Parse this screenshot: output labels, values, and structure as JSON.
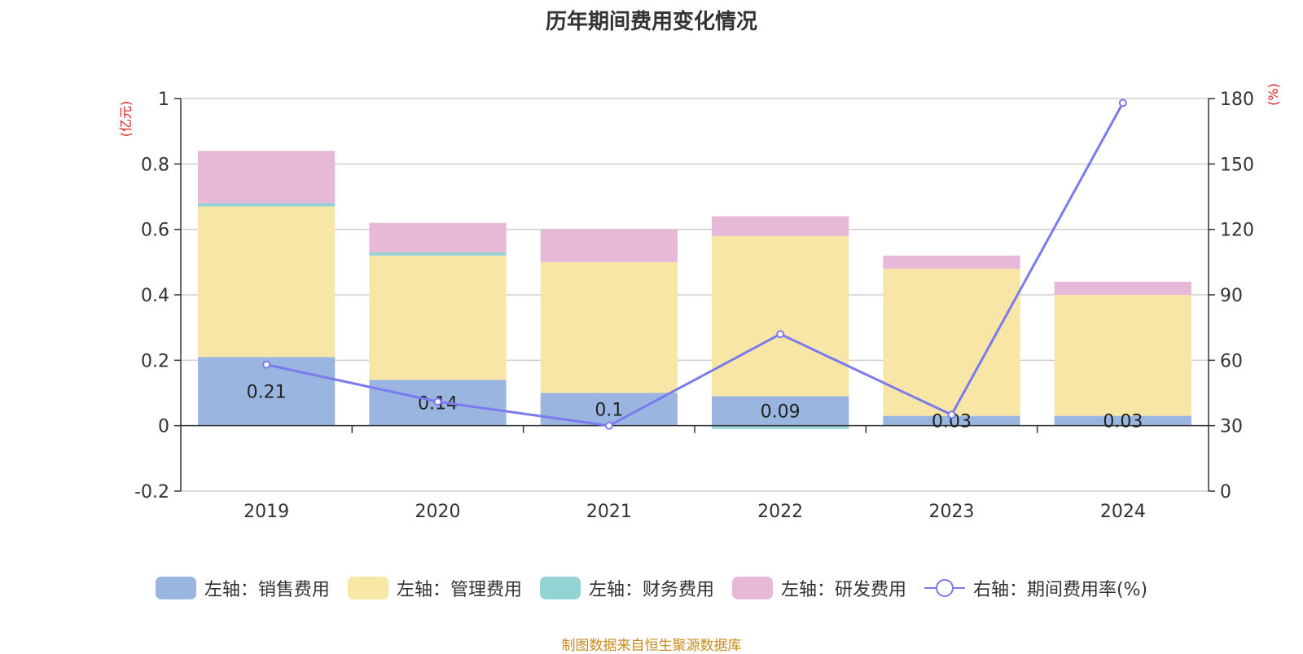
{
  "chart_data": {
    "type": "bar",
    "stacked": true,
    "title": "历年期间费用变化情况",
    "categories": [
      "2019",
      "2020",
      "2021",
      "2022",
      "2023",
      "2024"
    ],
    "y_left_label": "(亿元)",
    "y_right_label": "(%)",
    "ylim_left": [
      -0.2,
      1
    ],
    "ylim_right": [
      0,
      180
    ],
    "y_left_ticks": [
      "-0.2",
      "0",
      "0.2",
      "0.4",
      "0.6",
      "0.8",
      "1"
    ],
    "y_right_ticks": [
      "0",
      "30",
      "60",
      "90",
      "120",
      "150",
      "180"
    ],
    "grid": true,
    "legend_position": "bottom",
    "series": [
      {
        "name": "左轴：销售费用",
        "axis": "left",
        "color": "#9ab6e0",
        "values": [
          0.21,
          0.14,
          0.1,
          0.09,
          0.03,
          0.03
        ],
        "labels": [
          "0.21",
          "0.14",
          "0.1",
          "0.09",
          "0.03",
          "0.03"
        ]
      },
      {
        "name": "左轴：管理费用",
        "axis": "left",
        "color": "#f7e6a6",
        "values": [
          0.46,
          0.38,
          0.4,
          0.49,
          0.45,
          0.37
        ]
      },
      {
        "name": "左轴：财务费用",
        "axis": "left",
        "color": "#94d3d4",
        "values": [
          0.01,
          0.01,
          0.0,
          -0.01,
          0.0,
          0.0
        ]
      },
      {
        "name": "左轴：研发费用",
        "axis": "left",
        "color": "#e8b8d8",
        "values": [
          0.16,
          0.09,
          0.1,
          0.06,
          0.04,
          0.04
        ]
      },
      {
        "name": "右轴：期间费用率(%)",
        "axis": "right",
        "type": "line",
        "color": "#7b7bef",
        "values": [
          58,
          41,
          30,
          72,
          35,
          178
        ]
      }
    ]
  },
  "source_note": "制图数据来自恒生聚源数据库"
}
